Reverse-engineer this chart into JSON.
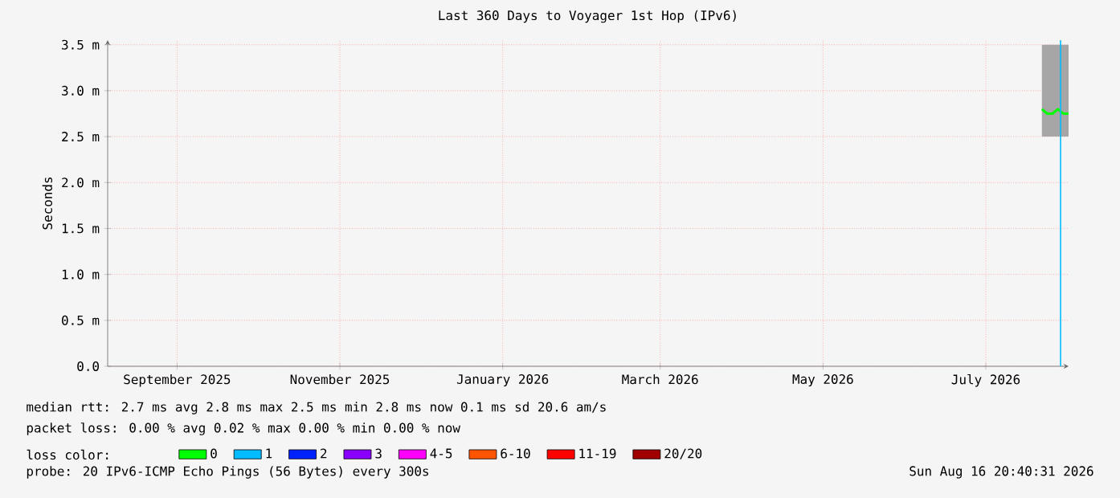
{
  "chart_data": {
    "type": "line",
    "title": "Last 360 Days to Voyager 1st Hop (IPv6)",
    "ylabel": "Seconds",
    "xlim": [
      "2025-08-21",
      "2026-08-16"
    ],
    "xticks": [
      {
        "value": "2025-09-16",
        "label": "September 2025"
      },
      {
        "value": "2025-11-16",
        "label": "November 2025"
      },
      {
        "value": "2026-01-16",
        "label": "January 2026"
      },
      {
        "value": "2026-03-16",
        "label": "March 2026"
      },
      {
        "value": "2026-05-16",
        "label": "May 2026"
      },
      {
        "value": "2026-07-16",
        "label": "July 2026"
      }
    ],
    "ylim": [
      0,
      3.55
    ],
    "yticks": [
      {
        "value": 0,
        "label": "0.0"
      },
      {
        "value": 0.5,
        "label": "0.5 m"
      },
      {
        "value": 1.0,
        "label": "1.0 m"
      },
      {
        "value": 1.5,
        "label": "1.5 m"
      },
      {
        "value": 2.0,
        "label": "2.0 m"
      },
      {
        "value": 2.5,
        "label": "2.5 m"
      },
      {
        "value": 3.0,
        "label": "3.0 m"
      },
      {
        "value": 3.5,
        "label": "3.5 m"
      }
    ],
    "grid": true,
    "legend": "bottom",
    "legend_title": "loss color:",
    "series": [
      {
        "name": "0",
        "color": "#00ff00",
        "x": [
          "2026-08-06",
          "2026-08-08",
          "2026-08-10",
          "2026-08-12",
          "2026-08-14",
          "2026-08-16"
        ],
        "values": [
          2.8,
          2.75,
          2.75,
          2.8,
          2.75,
          2.75
        ],
        "lower": [
          2.5,
          2.5,
          2.5,
          2.5,
          2.5,
          2.5
        ],
        "upper": [
          3.5,
          3.5,
          3.5,
          3.5,
          3.5,
          3.5
        ]
      },
      {
        "name": "1",
        "color": "#00bbff",
        "values": [
          null
        ]
      },
      {
        "name": "2",
        "color": "#0022ff",
        "values": [
          null
        ]
      },
      {
        "name": "3",
        "color": "#8a00ff",
        "values": [
          null
        ]
      },
      {
        "name": "4-5",
        "color": "#ff00ff",
        "values": [
          null
        ]
      },
      {
        "name": "6-10",
        "color": "#ff5500",
        "values": [
          null
        ]
      },
      {
        "name": "11-19",
        "color": "#ff0000",
        "values": [
          null
        ]
      },
      {
        "name": "20/20",
        "color": "#a10000",
        "values": [
          null
        ]
      }
    ],
    "ref_lines": [
      {
        "axis": "x",
        "value": "2026-08-13",
        "color": "#00bbff"
      }
    ],
    "annotations": [
      "median rtt:  2.7 ms avg  2.8 ms max  2.5 ms min  2.8 ms now  0.1 ms sd  20.6   am/s",
      "packet loss: 0.00 % avg  0.02 % max  0.00 % min  0.00 % now",
      "probe:       20 IPv6-ICMP Echo Pings (56 Bytes) every 300s",
      "Sun Aug 16 20:40:31 2026"
    ]
  }
}
